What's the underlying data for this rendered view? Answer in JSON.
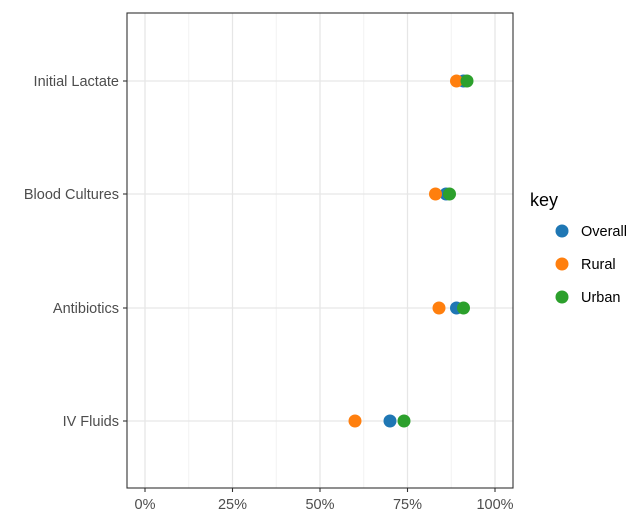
{
  "chart_data": {
    "type": "scatter",
    "categories": [
      "Initial Lactate",
      "Blood Cultures",
      "Antibiotics",
      "IV Fluids"
    ],
    "x_ticks": [
      "0%",
      "25%",
      "50%",
      "75%",
      "100%"
    ],
    "xlim": [
      0,
      100
    ],
    "x_tick_values": [
      0,
      25,
      50,
      75,
      100
    ],
    "grid": true,
    "legend": {
      "title": "key",
      "position": "right",
      "entries": [
        "Overall",
        "Rural",
        "Urban"
      ]
    },
    "series": [
      {
        "name": "Overall",
        "color": "#1f77b4",
        "values": [
          91,
          86,
          89,
          70
        ]
      },
      {
        "name": "Rural",
        "color": "#ff7f0e",
        "values": [
          89,
          83,
          84,
          60
        ]
      },
      {
        "name": "Urban",
        "color": "#2ca02c",
        "values": [
          92,
          87,
          91,
          74
        ]
      }
    ],
    "xlabel": "",
    "ylabel": ""
  }
}
